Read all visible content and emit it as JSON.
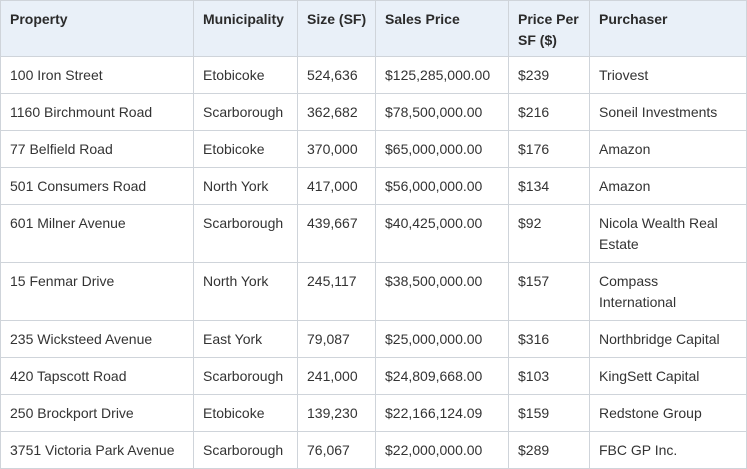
{
  "table": {
    "headers": [
      "Property",
      "Municipality",
      "Size (SF)",
      "Sales Price",
      "Price Per SF ($)",
      "Purchaser"
    ],
    "rows": [
      [
        "100 Iron Street",
        "Etobicoke",
        "524,636",
        "$125,285,000.00",
        "$239",
        "Triovest"
      ],
      [
        "1160 Birchmount Road",
        "Scarborough",
        "362,682",
        "$78,500,000.00",
        "$216",
        "Soneil Investments"
      ],
      [
        "77 Belfield Road",
        "Etobicoke",
        "370,000",
        "$65,000,000.00",
        "$176",
        "Amazon"
      ],
      [
        "501 Consumers Road",
        "North York",
        "417,000",
        "$56,000,000.00",
        "$134",
        "Amazon"
      ],
      [
        "601 Milner Avenue",
        "Scarborough",
        "439,667",
        "$40,425,000.00",
        "$92",
        "Nicola Wealth Real Estate"
      ],
      [
        "15 Fenmar Drive",
        "North York",
        "245,117",
        "$38,500,000.00",
        "$157",
        "Compass International"
      ],
      [
        "235 Wicksteed Avenue",
        "East York",
        "79,087",
        "$25,000,000.00",
        "$316",
        "Northbridge Capital"
      ],
      [
        "420 Tapscott Road",
        "Scarborough",
        "241,000",
        "$24,809,668.00",
        "$103",
        "KingSett Capital"
      ],
      [
        "250 Brockport Drive",
        "Etobicoke",
        "139,230",
        "$22,166,124.09",
        "$159",
        "Redstone Group"
      ],
      [
        "3751 Victoria Park Avenue",
        "Scarborough",
        "76,067",
        "$22,000,000.00",
        "$289",
        "FBC GP Inc."
      ]
    ]
  },
  "colors": {
    "header_background": "#e9f0f8",
    "border": "#cfd4da",
    "text": "#333333"
  }
}
